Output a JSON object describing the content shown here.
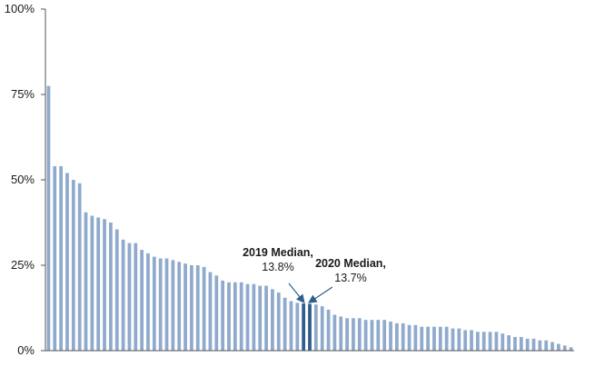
{
  "chart_data": {
    "type": "bar",
    "title": "",
    "xlabel": "",
    "ylabel": "",
    "ylim": [
      0,
      100
    ],
    "y_ticks": [
      "0%",
      "25%",
      "50%",
      "75%",
      "100%"
    ],
    "y_tick_values": [
      0,
      25,
      50,
      75,
      100
    ],
    "grid": false,
    "colors": {
      "bar": "#8FAACC",
      "highlight": "#2F5E8E",
      "axis": "#555555",
      "arrow": "#2F5E8E"
    },
    "values": [
      77.5,
      54.0,
      54.0,
      52.0,
      50.0,
      49.0,
      40.5,
      39.5,
      39.0,
      38.5,
      37.5,
      35.5,
      32.5,
      31.5,
      31.5,
      29.5,
      28.5,
      27.5,
      27.0,
      27.0,
      26.5,
      26.0,
      25.5,
      25.0,
      25.0,
      24.5,
      23.0,
      22.0,
      20.5,
      20.0,
      20.0,
      20.0,
      19.5,
      19.5,
      19.0,
      19.0,
      18.0,
      17.0,
      15.5,
      14.5,
      14.0,
      13.8,
      13.7,
      13.5,
      13.0,
      12.0,
      10.5,
      10.0,
      9.5,
      9.5,
      9.5,
      9.0,
      9.0,
      9.0,
      9.0,
      8.5,
      8.0,
      8.0,
      7.5,
      7.5,
      7.0,
      7.0,
      7.0,
      7.0,
      7.0,
      6.5,
      6.5,
      6.0,
      6.0,
      5.5,
      5.5,
      5.5,
      5.5,
      5.0,
      4.5,
      4.0,
      4.0,
      3.5,
      3.5,
      3.0,
      3.0,
      2.5,
      2.0,
      1.5,
      1.0
    ],
    "highlight_indices": [
      41,
      42
    ],
    "annotations": [
      {
        "bar_index": 41,
        "lines": [
          "2019 Median,",
          "13.8%"
        ]
      },
      {
        "bar_index": 42,
        "lines": [
          "2020 Median,",
          "13.7%"
        ]
      }
    ]
  }
}
